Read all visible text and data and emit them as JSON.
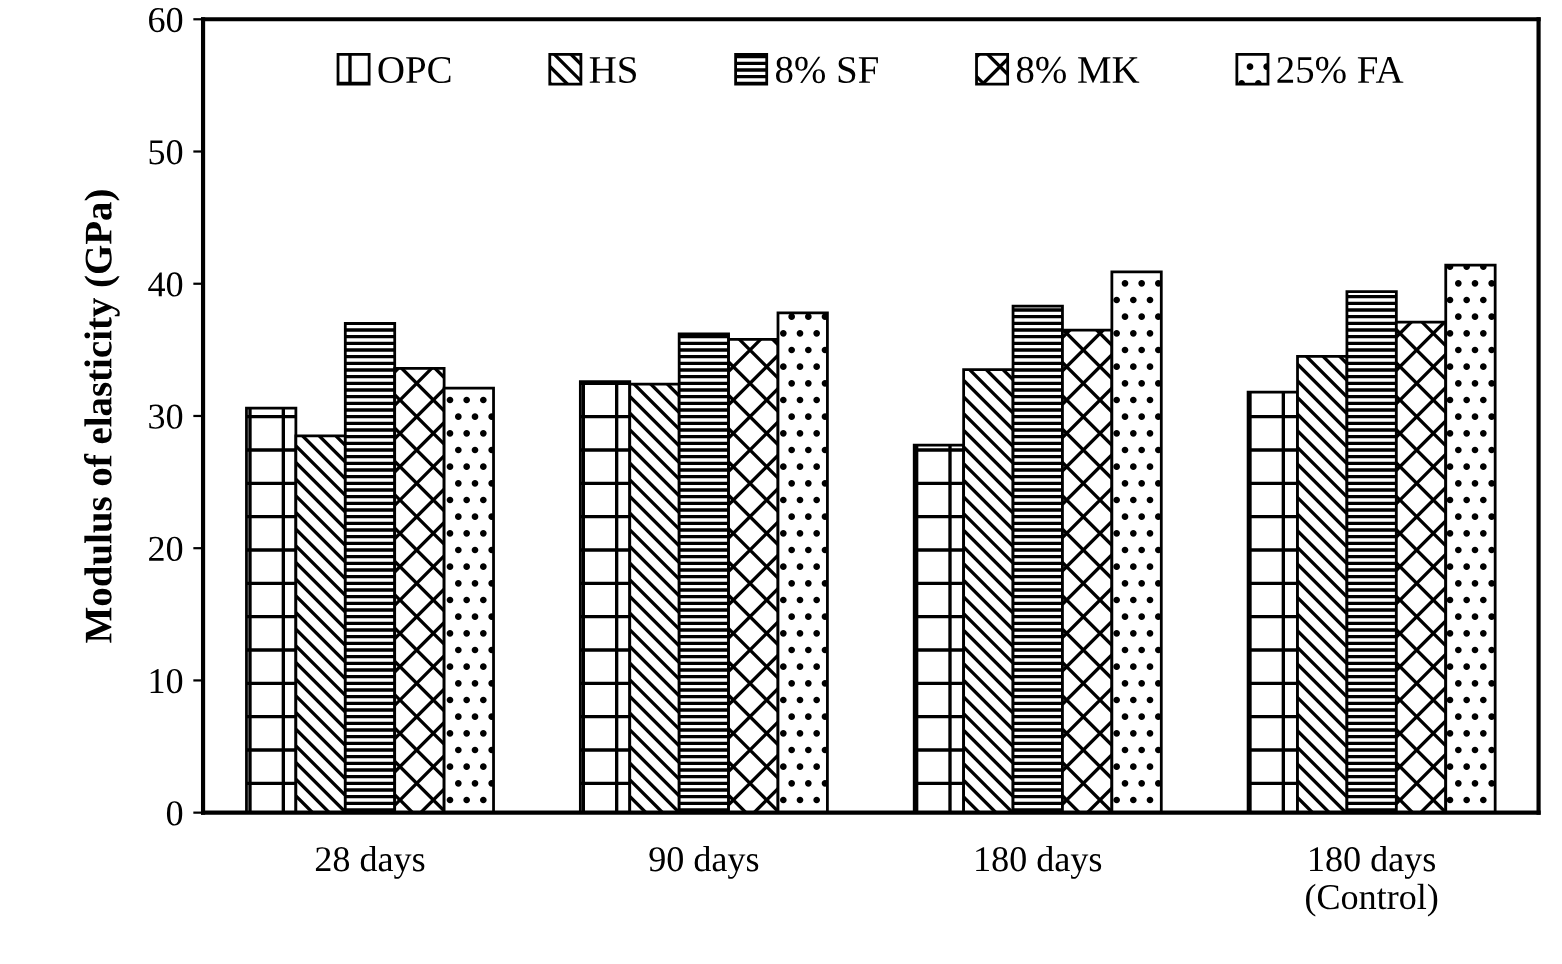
{
  "chart_data": {
    "type": "bar",
    "ylabel": "Modulus of elasticity (GPa)",
    "categories": [
      "28 days",
      "90 days",
      "180 days",
      "180 days\n(Control)"
    ],
    "series": [
      {
        "name": "OPC",
        "color": "#000000",
        "values": [
          30.6,
          32.6,
          27.8,
          31.8
        ]
      },
      {
        "name": "HS",
        "color": "#000000",
        "values": [
          28.5,
          32.4,
          33.5,
          34.5
        ]
      },
      {
        "name": "8% SF",
        "color": "#000000",
        "values": [
          37.0,
          36.2,
          38.3,
          39.4
        ]
      },
      {
        "name": "8% MK",
        "color": "#000000",
        "values": [
          33.6,
          35.8,
          36.5,
          37.1
        ]
      },
      {
        "name": "25% FA",
        "color": "#000000",
        "values": [
          32.1,
          37.8,
          40.9,
          41.4
        ]
      }
    ],
    "ylim": [
      0,
      60
    ],
    "yticks": [
      0,
      10,
      20,
      30,
      40,
      50,
      60
    ],
    "grid": false,
    "legend": "top"
  }
}
